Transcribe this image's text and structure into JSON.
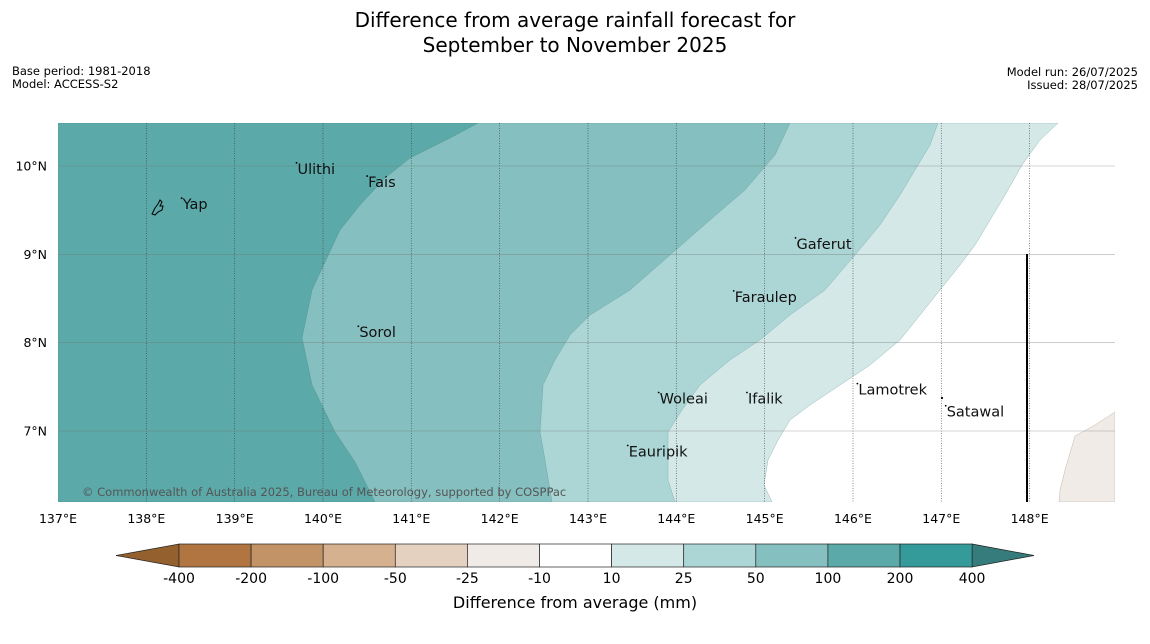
{
  "title": {
    "line1": "Difference from average rainfall forecast for",
    "line2": "September to November 2025"
  },
  "meta_left": {
    "base_period": "Base period: 1981-2018",
    "model": "Model: ACCESS-S2"
  },
  "meta_right": {
    "model_run": "Model run: 26/07/2025",
    "issued": "Issued: 28/07/2025"
  },
  "copyright": "© Commonwealth of Australia 2025, Bureau of Meteorology, supported by COSPPac",
  "axes": {
    "lon_ticks": [
      "137°E",
      "138°E",
      "139°E",
      "140°E",
      "141°E",
      "142°E",
      "143°E",
      "144°E",
      "145°E",
      "146°E",
      "147°E",
      "148°E"
    ],
    "lat_ticks": [
      "10°N",
      "9°N",
      "8°N",
      "7°N"
    ],
    "lon_range": [
      137,
      149
    ],
    "lat_range": [
      6.2,
      10.5
    ]
  },
  "places": [
    {
      "name": "Yap",
      "lon": 138.4,
      "lat": 9.5
    },
    {
      "name": "Ulithi",
      "lon": 139.7,
      "lat": 9.9
    },
    {
      "name": "Fais",
      "lon": 140.5,
      "lat": 9.75
    },
    {
      "name": "Gaferut",
      "lon": 145.35,
      "lat": 9.05
    },
    {
      "name": "Faraulep",
      "lon": 144.65,
      "lat": 8.45
    },
    {
      "name": "Sorol",
      "lon": 140.4,
      "lat": 8.05
    },
    {
      "name": "Lamotrek",
      "lon": 146.05,
      "lat": 7.4
    },
    {
      "name": "Woleai",
      "lon": 143.8,
      "lat": 7.3
    },
    {
      "name": "Ifalik",
      "lon": 144.8,
      "lat": 7.3
    },
    {
      "name": "Satawal",
      "lon": 147.05,
      "lat": 7.15
    },
    {
      "name": "Eauripik",
      "lon": 143.45,
      "lat": 6.7
    }
  ],
  "colorbar": {
    "labels": [
      "-400",
      "-200",
      "-100",
      "-50",
      "-25",
      "-10",
      "10",
      "25",
      "50",
      "100",
      "200",
      "400"
    ],
    "colors": [
      "#b07540",
      "#c29366",
      "#d5b190",
      "#e5d1c0",
      "#f0ebe6",
      "#ffffff",
      "#d4e8e8",
      "#acd5d5",
      "#85bfbf",
      "#5ba9a9",
      "#359a9a",
      "#367c7c"
    ],
    "low_extend_color": "#93602e",
    "high_extend_color": "#367c7c",
    "title": "Difference from average (mm)"
  }
}
